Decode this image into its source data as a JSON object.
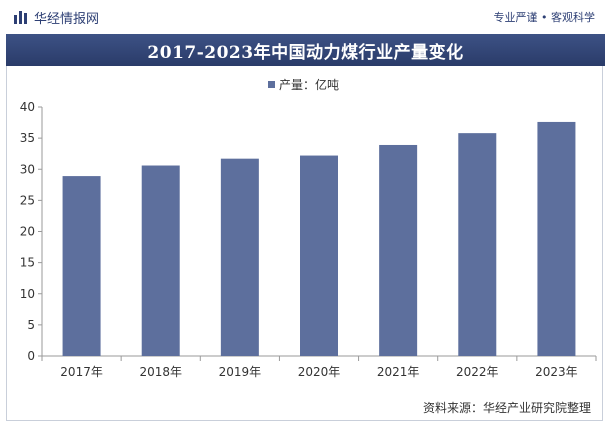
{
  "header": {
    "brand": "华经情报网",
    "slogan": "专业严谨 • 客观科学"
  },
  "source": "资料来源：华经产业研究院整理",
  "colors": {
    "bar": "#5d6f9d",
    "title_bar": "#2f4170",
    "brand": "#2d3f74"
  },
  "chart_data": {
    "type": "bar",
    "title": "2017-2023年中国动力煤行业产量变化",
    "categories": [
      "2017年",
      "2018年",
      "2019年",
      "2020年",
      "2021年",
      "2022年",
      "2023年"
    ],
    "series": [
      {
        "name": "产量：亿吨",
        "values": [
          28.9,
          30.6,
          31.7,
          32.2,
          33.9,
          35.8,
          37.6
        ]
      }
    ],
    "ylim": [
      0,
      40
    ],
    "yticks": [
      0,
      5,
      10,
      15,
      20,
      25,
      30,
      35,
      40
    ],
    "legend": "top-center",
    "grid": false
  }
}
